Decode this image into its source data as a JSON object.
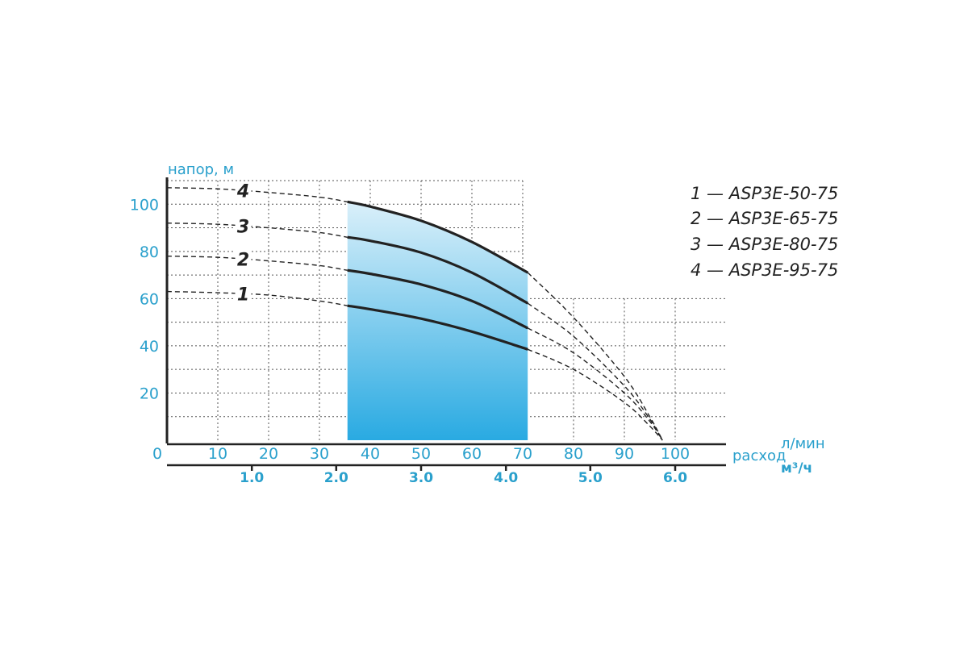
{
  "chart_data": {
    "type": "line",
    "ylabel": "напор, м",
    "xlabel": "расход",
    "x_unit_top": "л/мин",
    "x_unit_bottom": "м³/ч",
    "x_lpm_ticks": [
      "0",
      "10",
      "20",
      "30",
      "40",
      "50",
      "60",
      "70",
      "80",
      "90",
      "100"
    ],
    "x_m3h_ticks": [
      {
        "label": "1.0",
        "lpm": 16.7
      },
      {
        "label": "2.0",
        "lpm": 33.3
      },
      {
        "label": "3.0",
        "lpm": 50
      },
      {
        "label": "4.0",
        "lpm": 66.7
      },
      {
        "label": "5.0",
        "lpm": 83.3
      },
      {
        "label": "6.0",
        "lpm": 100
      }
    ],
    "y_ticks": [
      "20",
      "40",
      "60",
      "80",
      "100"
    ],
    "xlim": [
      0,
      110
    ],
    "ylim": [
      0,
      110
    ],
    "working_range": [
      35.5,
      71
    ],
    "series": [
      {
        "name": "ASP3E-50-75",
        "num": "1",
        "x": [
          0,
          10,
          20,
          30,
          35.5,
          40,
          50,
          60,
          71,
          80,
          90,
          95,
          97.5
        ],
        "y": [
          63,
          62.5,
          61.5,
          59,
          57,
          55.5,
          51.5,
          46,
          38.5,
          30,
          16,
          6,
          0
        ]
      },
      {
        "name": "ASP3E-65-75",
        "num": "2",
        "x": [
          0,
          10,
          20,
          30,
          35.5,
          40,
          50,
          60,
          71,
          80,
          90,
          95,
          97.5
        ],
        "y": [
          78,
          77.5,
          76,
          74,
          72,
          70.5,
          66,
          59,
          47.5,
          37,
          20,
          8,
          0
        ]
      },
      {
        "name": "ASP3E-80-75",
        "num": "3",
        "x": [
          0,
          10,
          20,
          30,
          35.5,
          40,
          50,
          60,
          71,
          80,
          90,
          95,
          97.5
        ],
        "y": [
          92,
          91.5,
          90,
          88,
          86,
          84.5,
          79.5,
          71,
          58,
          44,
          23,
          9,
          0
        ]
      },
      {
        "name": "ASP3E-95-75",
        "num": "4",
        "x": [
          0,
          10,
          20,
          30,
          35.5,
          40,
          50,
          60,
          71,
          80,
          90,
          95,
          97.5
        ],
        "y": [
          107,
          106.5,
          105,
          103,
          101,
          99,
          93,
          84,
          71,
          52,
          27,
          10,
          0
        ]
      }
    ],
    "curve_label_x": [
      15,
      15,
      15,
      15
    ],
    "legend_position": "top-right",
    "legend": [
      "1 — ASP3E-50-75",
      "2 — ASP3E-65-75",
      "3 — ASP3E-80-75",
      "4 — ASP3E-95-75"
    ],
    "colors": {
      "axis_text": "#2aa0cc",
      "curve": "#222222",
      "fill_top": "#d8eef8",
      "fill_bottom": "#29aae2",
      "grid": "#555555"
    }
  }
}
